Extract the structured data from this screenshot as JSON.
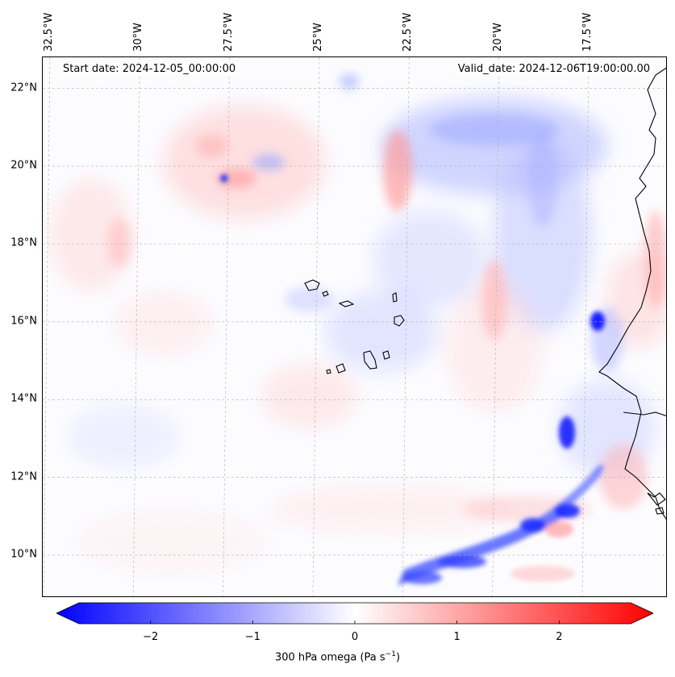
{
  "map": {
    "start_date_text": "Start date: 2024-12-05_00:00:00",
    "valid_date_text": "Valid_date: 2024-12-06T19:00:00.00",
    "lon_labels": [
      {
        "value": -32.5,
        "text": "32.5°W"
      },
      {
        "value": -30,
        "text": "30°W"
      },
      {
        "value": -27.5,
        "text": "27.5°W"
      },
      {
        "value": -25,
        "text": "25°W"
      },
      {
        "value": -22.5,
        "text": "22.5°W"
      },
      {
        "value": -20,
        "text": "20°W"
      },
      {
        "value": -17.5,
        "text": "17.5°W"
      }
    ],
    "lat_labels": [
      {
        "value": 22,
        "text": "22°N"
      },
      {
        "value": 20,
        "text": "20°N"
      },
      {
        "value": 18,
        "text": "18°N"
      },
      {
        "value": 16,
        "text": "16°N"
      },
      {
        "value": 14,
        "text": "14°N"
      },
      {
        "value": 12,
        "text": "12°N"
      },
      {
        "value": 10,
        "text": "10°N"
      }
    ],
    "extent": {
      "lon_min": -32.7,
      "lon_max": -15.3,
      "lat_min": 8.9,
      "lat_max": 22.8
    },
    "colors": {
      "negative": "#0000ff",
      "positive": "#ff0000",
      "zero": "#ffffff",
      "coastline": "#000000",
      "grid": "#b0b0b0"
    }
  },
  "colorbar": {
    "label": "300 hPa omega (Pa s",
    "label_sup": "−1",
    "label_tail": ")",
    "range": [
      -2.7,
      2.7
    ],
    "ticks": [
      {
        "value": -2,
        "text": "−2"
      },
      {
        "value": -1,
        "text": "−1"
      },
      {
        "value": 0,
        "text": "0"
      },
      {
        "value": 1,
        "text": "1"
      },
      {
        "value": 2,
        "text": "2"
      }
    ]
  }
}
